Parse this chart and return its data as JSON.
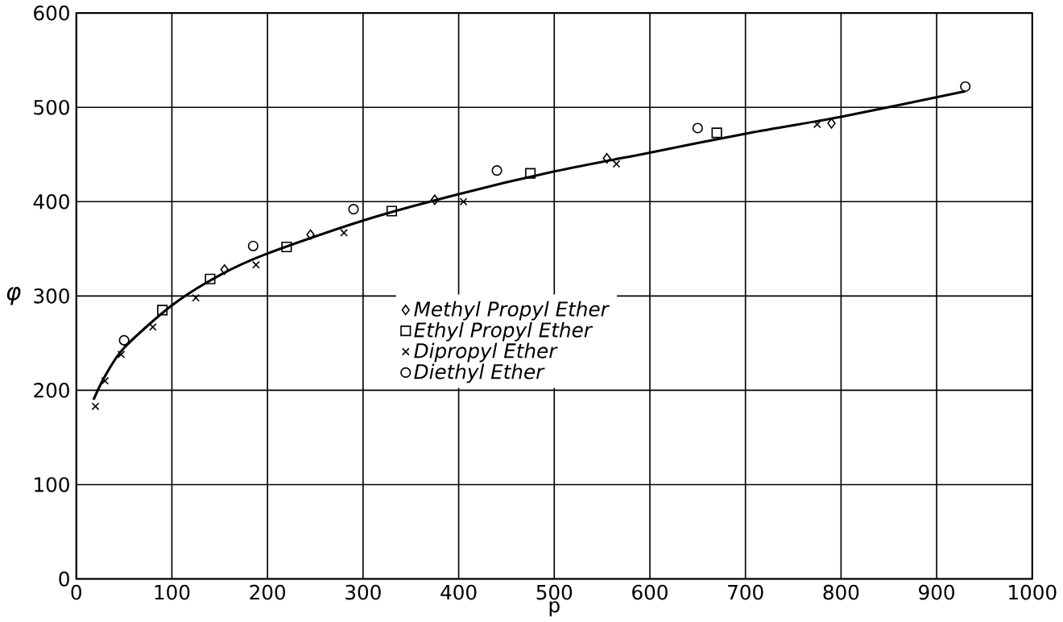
{
  "chart_data": {
    "type": "scatter",
    "xlabel": "p",
    "ylabel": "φ",
    "xlim": [
      0,
      1000
    ],
    "ylim": [
      0,
      600
    ],
    "xticks": [
      0,
      100,
      200,
      300,
      400,
      500,
      600,
      700,
      800,
      900,
      1000
    ],
    "yticks": [
      0,
      100,
      200,
      300,
      400,
      500,
      600
    ],
    "grid": true,
    "legend": "center",
    "series": [
      {
        "name": "Methyl Propyl Ether",
        "color": "#000000",
        "marker": "diamond",
        "x": [
          155,
          245,
          375,
          555,
          790
        ],
        "values": [
          328,
          365,
          402,
          446,
          483
        ]
      },
      {
        "name": "Ethyl Propyl Ether",
        "color": "#000000",
        "marker": "square",
        "x": [
          90,
          140,
          220,
          330,
          475,
          670
        ],
        "values": [
          285,
          318,
          352,
          390,
          430,
          473
        ]
      },
      {
        "name": "Dipropyl Ether",
        "color": "#000000",
        "marker": "cross",
        "x": [
          20,
          30,
          47,
          80,
          125,
          188,
          280,
          405,
          565,
          775
        ],
        "values": [
          183,
          210,
          238,
          267,
          298,
          333,
          367,
          400,
          440,
          482
        ]
      },
      {
        "name": "Diethyl Ether",
        "color": "#000000",
        "marker": "circle",
        "x": [
          50,
          185,
          290,
          440,
          650,
          930
        ],
        "values": [
          253,
          353,
          392,
          433,
          478,
          522
        ]
      },
      {
        "type": "line",
        "color": "#000000",
        "x": [
          18,
          30,
          50,
          100,
          150,
          200,
          300,
          400,
          500,
          600,
          700,
          800,
          930
        ],
        "values": [
          190,
          215,
          245,
          290,
          322,
          345,
          380,
          408,
          432,
          452,
          472,
          490,
          517
        ]
      }
    ]
  }
}
